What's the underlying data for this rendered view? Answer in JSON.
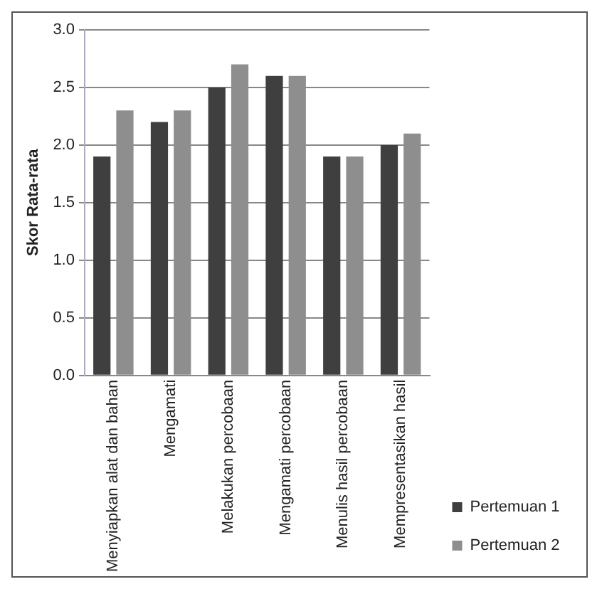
{
  "chart_data": {
    "type": "bar",
    "ylabel": "Skor Rata-rata",
    "categories": [
      "Menyiapkan alat dan bahan",
      "Mengamati",
      "Melakukan percobaan",
      "Mengamati percobaan",
      "Menulis hasil percobaan",
      "Mempresentasikan hasil"
    ],
    "series": [
      {
        "name": "Pertemuan 1",
        "color": "#3f3f3f",
        "values": [
          1.9,
          2.2,
          2.5,
          2.6,
          1.9,
          2.0
        ]
      },
      {
        "name": "Pertemuan 2",
        "color": "#8e8e8e",
        "values": [
          2.3,
          2.3,
          2.7,
          2.6,
          1.9,
          2.1
        ]
      }
    ],
    "ylim": [
      0,
      3
    ],
    "yticks": [
      {
        "value": 0,
        "label": "0.0"
      },
      0.5,
      {
        "value": 1,
        "label": "1.0"
      },
      1.5,
      {
        "value": 2,
        "label": "2.0"
      },
      2.5,
      {
        "value": 3,
        "label": "3.0"
      }
    ],
    "grid": "y",
    "legend": "right"
  }
}
